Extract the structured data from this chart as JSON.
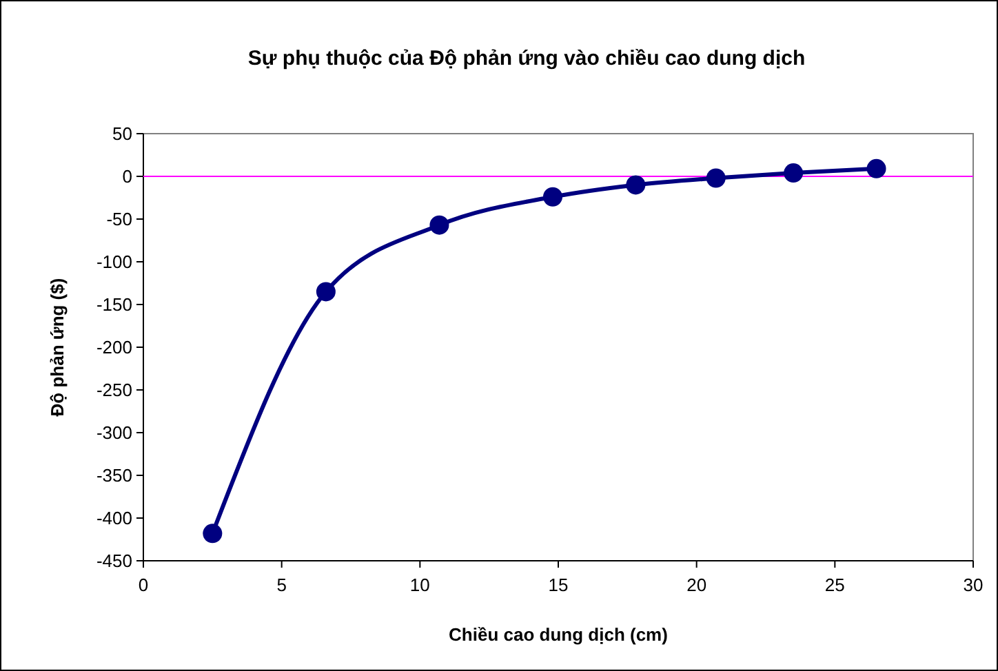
{
  "chart_data": {
    "type": "line",
    "title": "Sự phụ thuộc của Độ phản ứng vào chiều cao dung dịch",
    "xlabel": "Chiều cao dung dịch (cm)",
    "ylabel": "Độ phản ứng ($)",
    "x": [
      2.5,
      6.6,
      10.7,
      14.8,
      17.8,
      20.7,
      23.5,
      26.5
    ],
    "series": [
      {
        "color": "#000080",
        "values": [
          -418,
          -135,
          -57,
          -24,
          -10,
          -2,
          4,
          9
        ]
      }
    ],
    "xlim": [
      0,
      30
    ],
    "xticks": [
      0,
      5,
      10,
      15,
      20,
      25,
      30
    ],
    "ylim": [
      -450,
      50
    ],
    "yticks": [
      -450,
      -400,
      -350,
      -300,
      -250,
      -200,
      -150,
      -100,
      -50,
      0,
      50
    ],
    "ref_lines": [
      {
        "axis": "y",
        "value": 0,
        "color": "#ff00ff"
      }
    ],
    "grid": false,
    "marker": "circle",
    "line_style": "solid"
  }
}
